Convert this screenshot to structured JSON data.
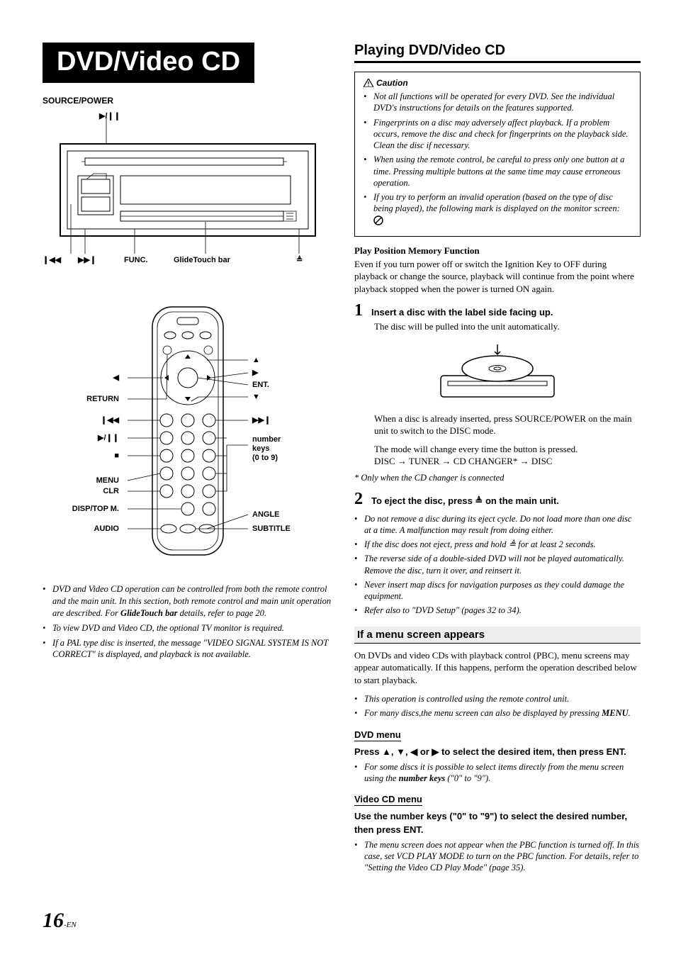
{
  "left": {
    "banner": "DVD/Video CD",
    "source_power": "SOURCE/POWER",
    "unit_labels": {
      "play_pause": "▶/❙❙",
      "prev": "❙◀◀",
      "next": "▶▶❙",
      "func": "FUNC.",
      "glidetouch": "GlideTouch bar",
      "eject": "≜"
    },
    "remote_left": [
      "◀",
      "RETURN",
      "❙◀◀",
      "▶/❙❙",
      "■",
      "MENU",
      "CLR",
      "DISP/TOP M.",
      "AUDIO"
    ],
    "remote_right": [
      "▲",
      "▶",
      "ENT.",
      "▼",
      "▶▶❙",
      "number keys (0 to 9)",
      "ANGLE",
      "SUBTITLE"
    ],
    "notes": [
      "DVD and Video CD operation can be controlled from both the remote control and the main unit. In this section, both remote control and main unit operation are described. For <b>GlideTouch bar</b> details, refer to page 20.",
      "To view DVD and Video CD, the optional TV monitor is required.",
      "If a PAL type disc is inserted, the message \"VIDEO SIGNAL SYSTEM IS NOT CORRECT\" is displayed, and playback is not available."
    ]
  },
  "right": {
    "heading": "Playing DVD/Video CD",
    "caution_label": "Caution",
    "caution_items": [
      "Not all functions will be operated for every DVD. See the individual DVD's instructions for details on the features supported.",
      "Fingerprints on a disc may adversely affect playback. If a problem occurs, remove the disc and check for fingerprints on the playback side. Clean the disc if necessary.",
      "When using the remote control, be careful to press only one button at a time. Pressing multiple buttons at the same time may cause erroneous operation.",
      "If you try to perform an invalid operation (based on the type of disc being played), the following mark is displayed on the monitor screen:"
    ],
    "ppm_head": "Play Position Memory Function",
    "ppm_body": "Even if you turn power off or switch the Ignition Key to OFF during playback or change the source, playback will continue from the point where playback stopped when the power is turned ON again.",
    "step1_num": "1",
    "step1_title": "Insert a disc with the label side facing up.",
    "step1_line1": "The disc will be pulled into the unit automatically.",
    "step1_line2": "When a disc is already inserted, press SOURCE/POWER on the main unit to switch to the DISC mode.",
    "step1_line3": "The mode will change every time the button is pressed.",
    "mode_chain": "DISC → TUNER → CD CHANGER* → DISC",
    "step1_footnote": "* Only when the CD changer is connected",
    "step2_num": "2",
    "step2_title_pre": "To eject the disc, press ",
    "step2_title_post": " on the main unit.",
    "step2_notes": [
      "Do not remove a disc during its eject cycle. Do not load more than one disc at a time. A malfunction may result from doing either.",
      "If the disc does not eject, press and hold ≜ for at least 2 seconds.",
      "The reverse side of a double-sided DVD will not be played automatically. Remove the disc, turn it over, and reinsert it.",
      "Never insert map discs for navigation purposes as they could damage the equipment.",
      "Refer also to \"DVD Setup\" (pages 32 to 34)."
    ],
    "menu_appears": "If a menu screen appears",
    "menu_intro": "On DVDs and video CDs with playback control (PBC), menu screens may appear automatically. If this happens, perform the operation described below to start playback.",
    "menu_intro_notes": [
      "This operation is controlled using the remote control unit.",
      "For many discs,the menu screen can also be displayed by pressing <b>MENU</b>."
    ],
    "dvd_menu_label": "DVD menu",
    "dvd_menu_instruction": "Press ▲, ▼, ◀ or ▶ to select the desired item, then press ",
    "ent": "ENT.",
    "dvd_menu_note": "For some discs it is possible to select items directly from the menu screen using the <b>number keys</b> (\"0\" to \"9\").",
    "vcd_menu_label": "Video CD menu",
    "vcd_instruction_pre": "Use the ",
    "vcd_number_keys": "number keys",
    "vcd_instruction_post": " (\"0\" to \"9\") to select the desired number, then press ",
    "vcd_note": "The menu screen does not appear when the PBC function is turned off. In this case, set VCD PLAY MODE  to turn on the PBC function. For details, refer to \"Setting the Video CD Play Mode\" (page 35)."
  },
  "page_num": "16",
  "page_suffix": "-EN"
}
